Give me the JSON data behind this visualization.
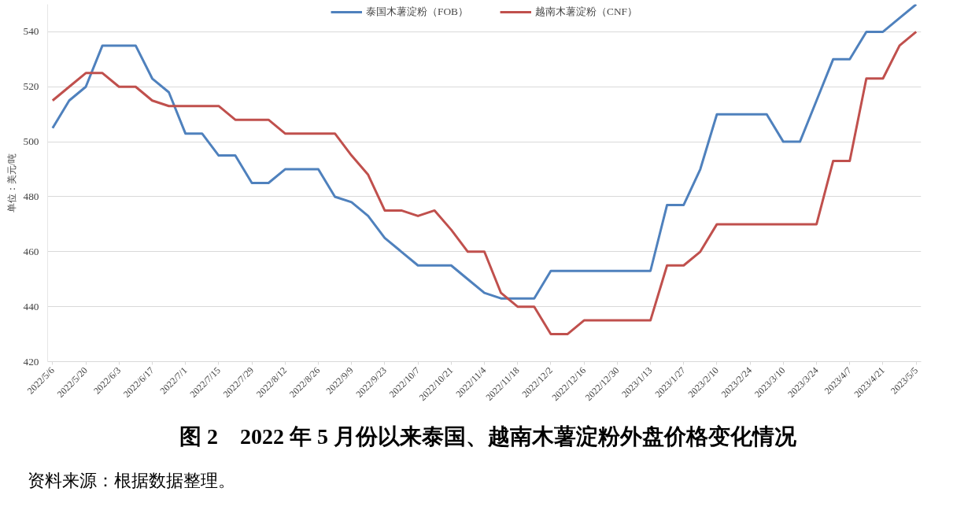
{
  "chart_data": {
    "type": "line",
    "title": "图 2　2022 年 5 月份以来泰国、越南木薯淀粉外盘价格变化情况",
    "ylabel": "单位：美元/吨",
    "annotations": [
      "资料来源：根据数据整理。"
    ],
    "categories": [
      "2022/5/6",
      null,
      "2022/5/20",
      null,
      "2022/6/3",
      null,
      "2022/6/17",
      null,
      "2022/7/1",
      null,
      "2022/7/15",
      null,
      "2022/7/29",
      null,
      "2022/8/12",
      null,
      "2022/8/26",
      null,
      "2022/9/9",
      null,
      "2022/9/23",
      null,
      "2022/10/7",
      null,
      "2022/10/21",
      null,
      "2022/11/4",
      null,
      "2022/11/18",
      null,
      "2022/12/2",
      null,
      "2022/12/16",
      null,
      "2022/12/30",
      null,
      "2023/1/13",
      null,
      "2023/1/27",
      null,
      "2023/2/10",
      null,
      "2023/2/24",
      null,
      "2023/3/10",
      null,
      "2023/3/24",
      null,
      "2023/4/7",
      null,
      "2023/4/21",
      null,
      "2023/5/5"
    ],
    "series": [
      {
        "name": "泰国木薯淀粉（FOB）",
        "color": "#4f81bd",
        "values": [
          505,
          515,
          520,
          535,
          535,
          535,
          523,
          518,
          503,
          503,
          495,
          495,
          485,
          485,
          490,
          490,
          490,
          480,
          478,
          473,
          465,
          460,
          455,
          455,
          455,
          450,
          445,
          443,
          443,
          443,
          453,
          453,
          453,
          453,
          453,
          453,
          453,
          477,
          477,
          490,
          510,
          510,
          510,
          510,
          500,
          500,
          515,
          530,
          530,
          540,
          540,
          545,
          550
        ]
      },
      {
        "name": "越南木薯淀粉（CNF）",
        "color": "#c0504d",
        "values": [
          515,
          520,
          525,
          525,
          520,
          520,
          515,
          513,
          513,
          513,
          513,
          508,
          508,
          508,
          503,
          503,
          503,
          503,
          495,
          488,
          475,
          475,
          473,
          475,
          468,
          460,
          460,
          445,
          440,
          440,
          430,
          430,
          435,
          435,
          435,
          435,
          435,
          455,
          455,
          460,
          470,
          470,
          470,
          470,
          470,
          470,
          470,
          493,
          493,
          523,
          523,
          535,
          540
        ]
      }
    ],
    "ylim": [
      420,
      550
    ],
    "yticks": [
      420,
      440,
      460,
      480,
      500,
      520,
      540
    ],
    "grid": "y",
    "legend": "top",
    "marker": "none",
    "line_style": "solid"
  }
}
